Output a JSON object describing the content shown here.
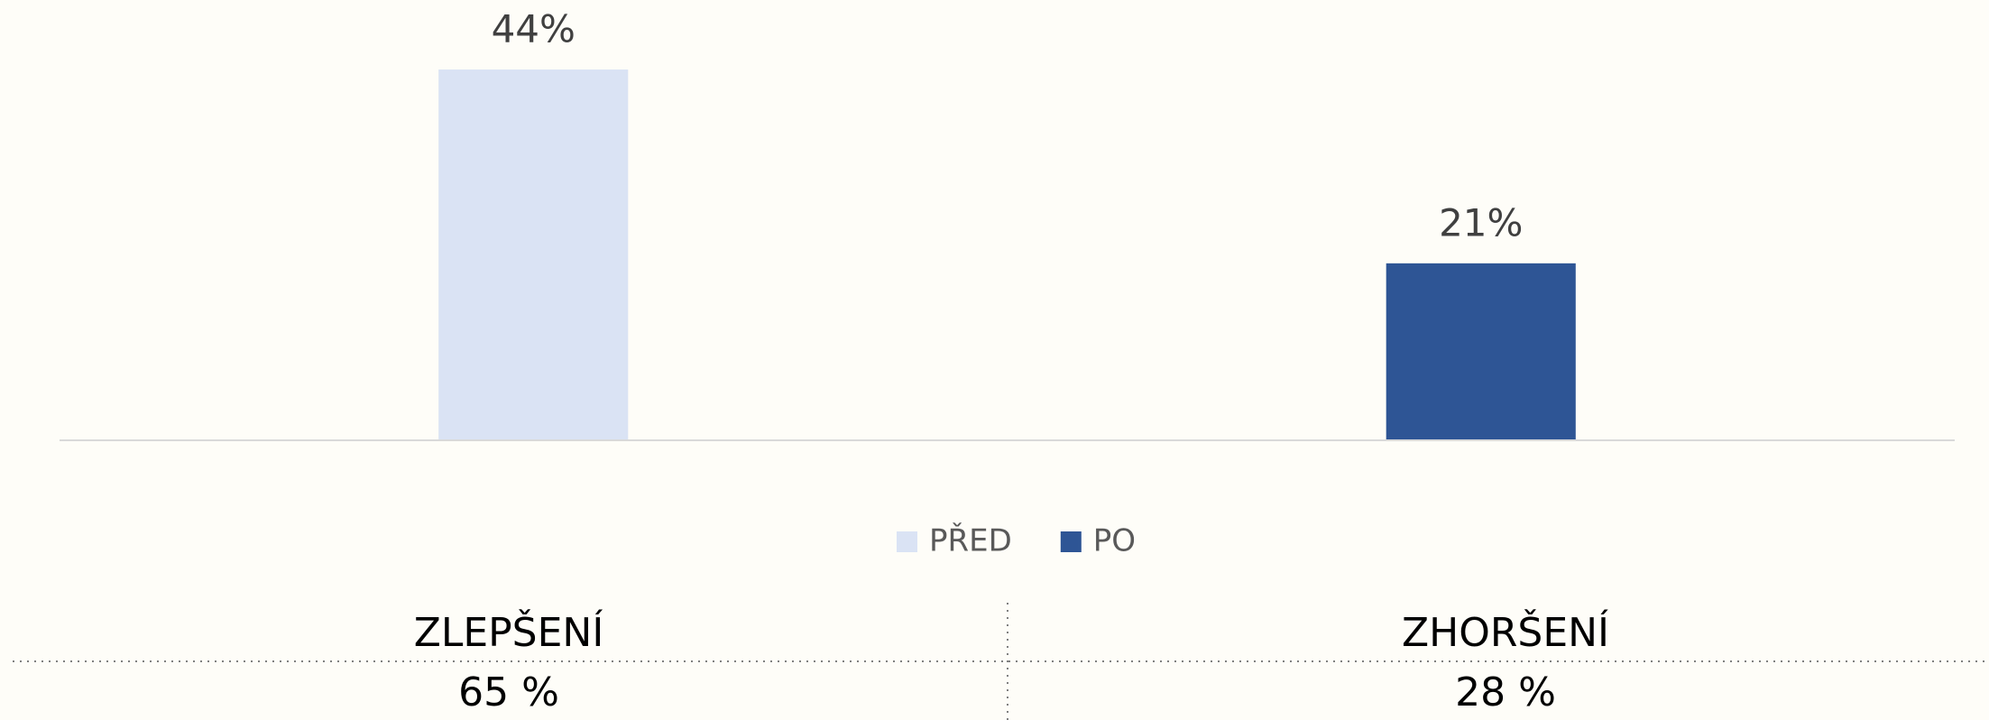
{
  "chart_data": {
    "type": "bar",
    "categories": [
      null,
      null
    ],
    "series": [
      {
        "name": "PŘED",
        "color": "#dae3f4",
        "values": [
          44,
          null
        ],
        "value_labels": [
          "44%",
          null
        ]
      },
      {
        "name": "PO",
        "color": "#2e5595",
        "values": [
          null,
          21
        ],
        "value_labels": [
          null,
          "21%"
        ]
      }
    ],
    "ylim": [
      0,
      50
    ],
    "grid": false,
    "legend": "bottom"
  },
  "summary": [
    {
      "label": "ZLEPŠENÍ",
      "value": "65 %"
    },
    {
      "label": "ZHORŠENÍ",
      "value": "28 %"
    }
  ]
}
